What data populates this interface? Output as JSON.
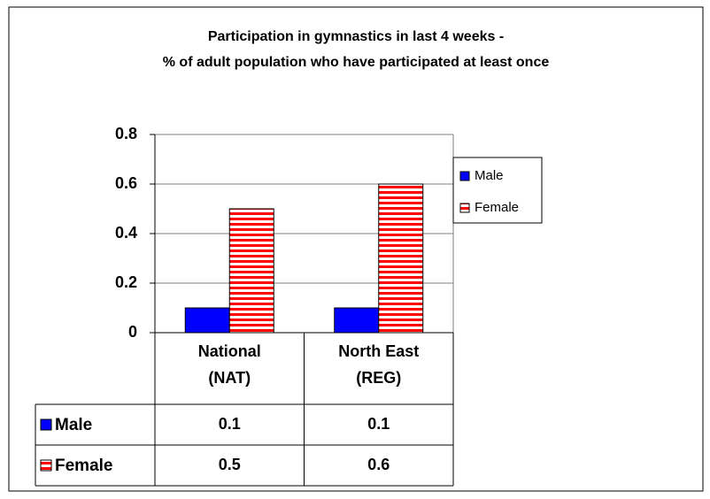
{
  "chart_data": {
    "type": "bar",
    "title": [
      "Participation in gymnastics in last 4 weeks -",
      "% of adult population who have participated at least once"
    ],
    "categories": [
      [
        "National",
        "(NAT)"
      ],
      [
        "North East",
        "(REG)"
      ]
    ],
    "series": [
      {
        "name": "Male",
        "color": "#0000ff",
        "values": [
          0.1,
          0.1
        ]
      },
      {
        "name": "Female",
        "color": "#ff0000",
        "values": [
          0.5,
          0.6
        ]
      }
    ],
    "ylim": [
      0,
      0.8
    ],
    "yticks": [
      0,
      0.2,
      0.4,
      0.6,
      0.8
    ],
    "grid": true,
    "legend": "right"
  }
}
